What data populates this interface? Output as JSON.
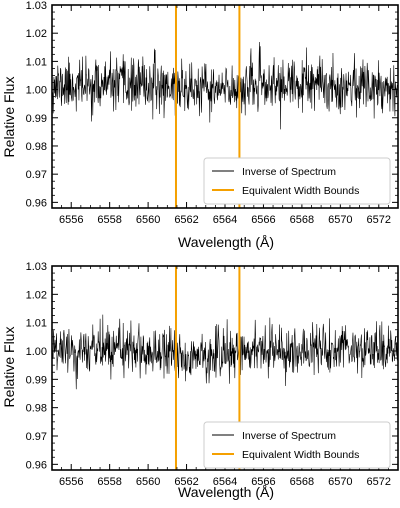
{
  "chart_data": [
    {
      "type": "line",
      "xlabel": "Wavelength (Å)",
      "ylabel": "Relative Flux",
      "xlim": [
        6555.0,
        6573.0
      ],
      "ylim": [
        0.958,
        1.03
      ],
      "xticks": [
        6556,
        6558,
        6560,
        6562,
        6564,
        6566,
        6568,
        6570,
        6572
      ],
      "yticks": [
        0.96,
        0.97,
        0.98,
        0.99,
        1.0,
        1.01,
        1.02,
        1.03
      ],
      "ytick_labels": [
        "0.96",
        "0.97",
        "0.98",
        "0.99",
        "1.00",
        "1.01",
        "1.02",
        "1.03"
      ],
      "grid": false,
      "legend_position": "lower-right",
      "series": [
        {
          "name": "Inverse of Spectrum",
          "color": "#000000",
          "kind": "noisy-spectrum",
          "x_range": [
            6555.0,
            6573.0
          ],
          "n_points": 900,
          "mean": 1.0015,
          "noise_sigma": 0.0045,
          "dip_center": 6563.3,
          "dip_depth": 0.002,
          "seed": 11
        }
      ],
      "vlines": [
        {
          "name": "Equivalent Width Bounds",
          "color": "#f5a000",
          "x": [
            6561.45,
            6564.75
          ]
        }
      ]
    },
    {
      "type": "line",
      "xlabel": "Wavelength (Å)",
      "ylabel": "Relative Flux",
      "xlim": [
        6555.0,
        6573.0
      ],
      "ylim": [
        0.958,
        1.03
      ],
      "xticks": [
        6556,
        6558,
        6560,
        6562,
        6564,
        6566,
        6568,
        6570,
        6572
      ],
      "yticks": [
        0.96,
        0.97,
        0.98,
        0.99,
        1.0,
        1.01,
        1.02,
        1.03
      ],
      "ytick_labels": [
        "0.96",
        "0.97",
        "0.98",
        "0.99",
        "1.00",
        "1.01",
        "1.02",
        "1.03"
      ],
      "grid": false,
      "legend_position": "lower-right",
      "series": [
        {
          "name": "Inverse of Spectrum",
          "color": "#000000",
          "kind": "noisy-spectrum",
          "x_range": [
            6555.0,
            6573.0
          ],
          "n_points": 900,
          "mean": 1.0005,
          "noise_sigma": 0.0042,
          "dip_center": 6563.0,
          "dip_depth": 0.0025,
          "seed": 29
        }
      ],
      "vlines": [
        {
          "name": "Equivalent Width Bounds",
          "color": "#f5a000",
          "x": [
            6561.45,
            6564.75
          ]
        }
      ]
    }
  ]
}
